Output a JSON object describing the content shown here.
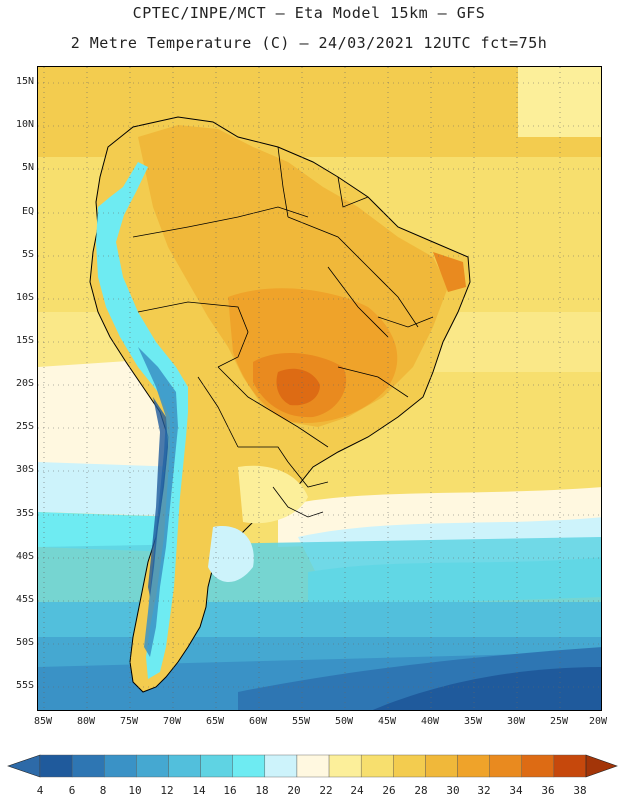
{
  "header": {
    "line1": "CPTEC/INPE/MCT –  Eta Model 15km – GFS",
    "line2": "2 Metre Temperature (C) – 24/03/2021 12UTC fct=75h"
  },
  "axes": {
    "lat_labels": [
      "15N",
      "10N",
      "5N",
      "EQ",
      "5S",
      "10S",
      "15S",
      "20S",
      "25S",
      "30S",
      "35S",
      "40S",
      "45S",
      "50S",
      "55S"
    ],
    "lon_labels": [
      "85W",
      "80W",
      "75W",
      "70W",
      "65W",
      "60W",
      "55W",
      "50W",
      "45W",
      "40W",
      "35W",
      "30W",
      "25W",
      "20W"
    ]
  },
  "colorbar": {
    "labels": [
      "4",
      "6",
      "8",
      "10",
      "12",
      "14",
      "16",
      "18",
      "20",
      "22",
      "24",
      "26",
      "28",
      "30",
      "32",
      "34",
      "36",
      "38"
    ],
    "colors": [
      "#1f5a9c",
      "#2e76b3",
      "#3a92c6",
      "#45a8d1",
      "#52bfdc",
      "#5fd3e3",
      "#6eebf2",
      "#cdf3fb",
      "#fff8e0",
      "#fcef9a",
      "#f7df6e",
      "#f3cc4f",
      "#f0b83a",
      "#efa32a",
      "#e98a1f",
      "#dd6b14",
      "#c6480c"
    ],
    "underflow_color": "#2d6aa8",
    "overflow_color": "#a33508"
  }
}
